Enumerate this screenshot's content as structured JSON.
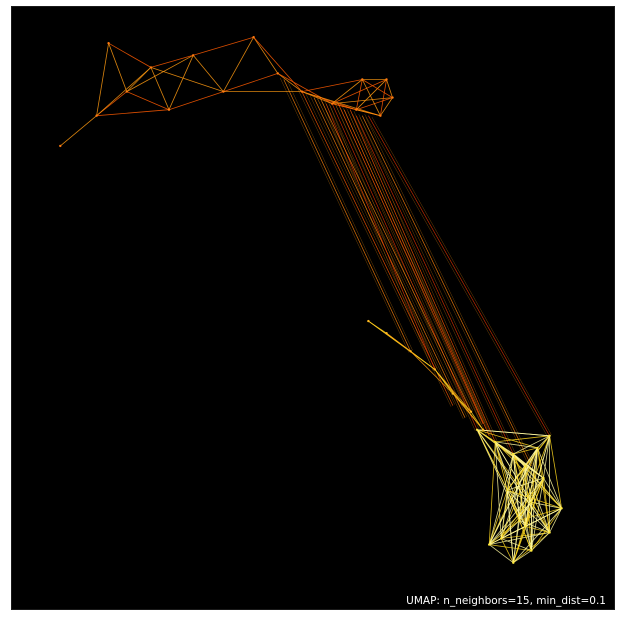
{
  "chart_data": {
    "type": "line",
    "subtype": "UMAP connectivity edge bundle",
    "annotation": "UMAP: n_neighbors=15, min_dist=0.1",
    "background_color": "#000000",
    "colormap": [
      "#7a0000",
      "#c81e00",
      "#ff5a00",
      "#ff9a10",
      "#ffd81e",
      "#fff9a0"
    ],
    "axes_visible": false,
    "grid": false,
    "xlim": [
      0,
      100
    ],
    "ylim": [
      0,
      100
    ],
    "clusters": [
      {
        "name": "top-left-arc",
        "points": [
          [
            8,
            77
          ],
          [
            14,
            82
          ],
          [
            16,
            94
          ],
          [
            19,
            86
          ],
          [
            23,
            90
          ],
          [
            26,
            83
          ],
          [
            30,
            92
          ],
          [
            35,
            86
          ],
          [
            40,
            95
          ],
          [
            44,
            89
          ],
          [
            48,
            86
          ],
          [
            53,
            84
          ],
          [
            57,
            83
          ],
          [
            61,
            82
          ],
          [
            63,
            85
          ],
          [
            62,
            88
          ],
          [
            58,
            88
          ]
        ],
        "color": "#ff7a10"
      },
      {
        "name": "middle-ribbon",
        "points": [
          [
            59,
            48
          ],
          [
            62,
            46
          ],
          [
            66,
            43
          ],
          [
            70,
            40
          ],
          [
            73,
            36
          ],
          [
            76,
            33
          ],
          [
            78,
            30
          ]
        ],
        "color": "#ffb820"
      },
      {
        "name": "bottom-right-cluster",
        "points": [
          [
            77,
            30
          ],
          [
            80,
            28
          ],
          [
            83,
            26
          ],
          [
            85,
            24
          ],
          [
            87,
            27
          ],
          [
            89,
            29
          ],
          [
            86,
            18
          ],
          [
            84,
            15
          ],
          [
            81,
            12
          ],
          [
            79,
            11
          ],
          [
            83,
            8
          ],
          [
            86,
            10
          ],
          [
            89,
            13
          ],
          [
            91,
            17
          ],
          [
            88,
            22
          ],
          [
            82,
            20
          ],
          [
            85,
            14
          ]
        ],
        "color": "#ffe83a"
      }
    ],
    "long_edges": [
      {
        "from": [
          53,
          84
        ],
        "to": [
          77,
          30
        ]
      },
      {
        "from": [
          55,
          83
        ],
        "to": [
          79,
          29
        ]
      },
      {
        "from": [
          50,
          85
        ],
        "to": [
          75,
          32
        ]
      },
      {
        "from": [
          57,
          82
        ],
        "to": [
          83,
          26
        ]
      },
      {
        "from": [
          48,
          86
        ],
        "to": [
          73,
          34
        ]
      },
      {
        "from": [
          58,
          82
        ],
        "to": [
          86,
          24
        ]
      },
      {
        "from": [
          52,
          84
        ],
        "to": [
          70,
          40
        ]
      },
      {
        "from": [
          56,
          83
        ],
        "to": [
          80,
          28
        ]
      },
      {
        "from": [
          45,
          88
        ],
        "to": [
          66,
          43
        ]
      },
      {
        "from": [
          59,
          82
        ],
        "to": [
          89,
          29
        ]
      },
      {
        "from": [
          54,
          84
        ],
        "to": [
          78,
          31
        ]
      },
      {
        "from": [
          51,
          85
        ],
        "to": [
          76,
          33
        ]
      }
    ]
  }
}
